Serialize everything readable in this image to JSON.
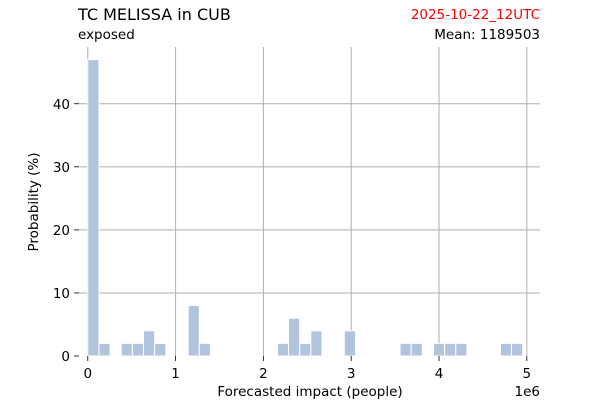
{
  "header": {
    "title": "TC MELISSA in CUB",
    "subtitle": "exposed",
    "date": "2025-10-22_12UTC",
    "date_color": "#ff0000",
    "mean": "Mean: 1189503"
  },
  "chart_data": {
    "type": "bar",
    "title": "TC MELISSA in CUB",
    "xlabel": "Forecasted impact (people)",
    "ylabel": "Probability (%)",
    "x_offset_label": "1e6",
    "xlim": [
      -0.1,
      5.15
    ],
    "ylim": [
      0,
      49
    ],
    "x_ticks": [
      0,
      1,
      2,
      3,
      4,
      5
    ],
    "x_tick_labels": [
      "0",
      "1",
      "2",
      "3",
      "4",
      "5"
    ],
    "y_ticks": [
      0,
      10,
      20,
      30,
      40
    ],
    "y_tick_labels": [
      "0",
      "10",
      "20",
      "30",
      "40"
    ],
    "grid": true,
    "bar_color": "#b0c4de",
    "bin_width": 0.127,
    "bins_start": [
      0,
      0.127,
      0.381,
      0.508,
      0.635,
      0.762,
      1.143,
      1.27,
      2.16,
      2.286,
      2.413,
      2.54,
      2.921,
      3.556,
      3.683,
      3.937,
      4.064,
      4.191,
      4.699,
      4.826
    ],
    "values": [
      47,
      2,
      2,
      2,
      4,
      2,
      8,
      2,
      2,
      6,
      2,
      4,
      4,
      2,
      2,
      2,
      2,
      2,
      2,
      2
    ]
  }
}
